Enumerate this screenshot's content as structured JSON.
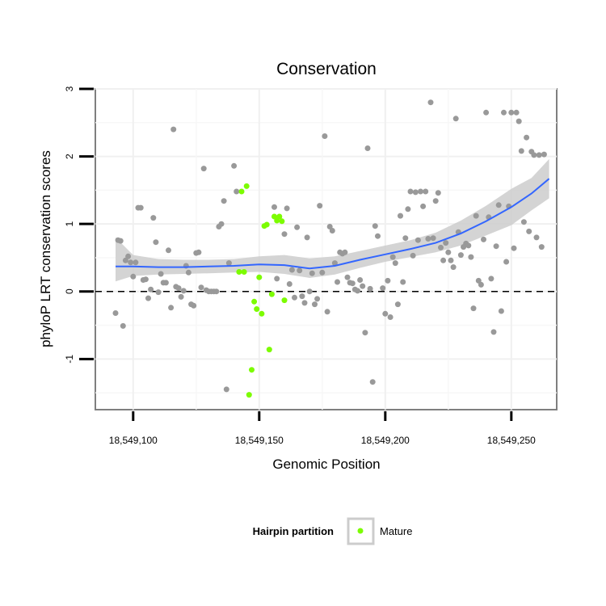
{
  "chart_data": {
    "type": "scatter",
    "title": "Conservation",
    "xlabel": "Genomic Position",
    "ylabel": "phyloP LRT conservation scores",
    "xlim": [
      18549085,
      18549268
    ],
    "ylim": [
      -1.75,
      3.0
    ],
    "x_ticks": [
      18549100,
      18549150,
      18549200,
      18549250
    ],
    "x_tick_labels": [
      "18,549,100",
      "18,549,150",
      "18,549,200",
      "18,549,250"
    ],
    "y_ticks": [
      -1,
      0,
      1,
      2,
      3
    ],
    "y_tick_labels": [
      "-1",
      "0",
      "1",
      "2",
      "3"
    ],
    "reference_line": {
      "y": 0,
      "style": "dashed"
    },
    "grid": true,
    "legend": {
      "title": "Hairpin partition",
      "position": "bottom",
      "entries": [
        {
          "label": "Mature",
          "color": "#7cfc00"
        }
      ]
    },
    "colors": {
      "other_points": "#999999",
      "mature_points": "#7cfc00",
      "smooth_line": "#3366ff",
      "ribbon": "#cccccc"
    },
    "series": [
      {
        "name": "",
        "color": "#999999",
        "points": [
          [
            18549093,
            -0.32
          ],
          [
            18549094,
            0.76
          ],
          [
            18549095,
            0.75
          ],
          [
            18549096,
            -0.51
          ],
          [
            18549097,
            0.46
          ],
          [
            18549098,
            0.52
          ],
          [
            18549099,
            0.43
          ],
          [
            18549100,
            0.22
          ],
          [
            18549101,
            0.43
          ],
          [
            18549102,
            1.24
          ],
          [
            18549103,
            1.24
          ],
          [
            18549104,
            0.17
          ],
          [
            18549105,
            0.18
          ],
          [
            18549106,
            -0.1
          ],
          [
            18549107,
            0.03
          ],
          [
            18549108,
            1.09
          ],
          [
            18549109,
            0.73
          ],
          [
            18549110,
            -0.01
          ],
          [
            18549111,
            0.26
          ],
          [
            18549112,
            0.13
          ],
          [
            18549113,
            0.13
          ],
          [
            18549114,
            0.61
          ],
          [
            18549115,
            -0.24
          ],
          [
            18549116,
            2.4
          ],
          [
            18549117,
            0.07
          ],
          [
            18549118,
            0.05
          ],
          [
            18549119,
            -0.08
          ],
          [
            18549120,
            0.01
          ],
          [
            18549121,
            0.38
          ],
          [
            18549122,
            0.28
          ],
          [
            18549123,
            -0.19
          ],
          [
            18549124,
            -0.21
          ],
          [
            18549125,
            0.57
          ],
          [
            18549126,
            0.58
          ],
          [
            18549127,
            0.06
          ],
          [
            18549128,
            1.82
          ],
          [
            18549129,
            0.02
          ],
          [
            18549130,
            0.0
          ],
          [
            18549131,
            0.0
          ],
          [
            18549132,
            0.0
          ],
          [
            18549133,
            0.0
          ],
          [
            18549134,
            0.96
          ],
          [
            18549135,
            1.0
          ],
          [
            18549136,
            1.34
          ],
          [
            18549137,
            -1.45
          ],
          [
            18549138,
            0.42
          ],
          [
            18549140,
            1.86
          ],
          [
            18549141,
            1.48
          ],
          [
            18549156,
            1.25
          ],
          [
            18549157,
            0.19
          ],
          [
            18549160,
            0.85
          ],
          [
            18549161,
            1.23
          ],
          [
            18549162,
            0.11
          ],
          [
            18549163,
            0.32
          ],
          [
            18549164,
            -0.09
          ],
          [
            18549165,
            0.95
          ],
          [
            18549166,
            0.31
          ],
          [
            18549167,
            -0.07
          ],
          [
            18549168,
            -0.17
          ],
          [
            18549169,
            0.8
          ],
          [
            18549170,
            0.0
          ],
          [
            18549171,
            0.27
          ],
          [
            18549172,
            -0.19
          ],
          [
            18549173,
            -0.11
          ],
          [
            18549174,
            1.27
          ],
          [
            18549175,
            0.28
          ],
          [
            18549176,
            2.3
          ],
          [
            18549177,
            -0.3
          ],
          [
            18549178,
            0.96
          ],
          [
            18549179,
            0.9
          ],
          [
            18549180,
            0.42
          ],
          [
            18549181,
            0.14
          ],
          [
            18549182,
            0.58
          ],
          [
            18549183,
            0.56
          ],
          [
            18549184,
            0.58
          ],
          [
            18549185,
            0.21
          ],
          [
            18549186,
            0.13
          ],
          [
            18549187,
            0.12
          ],
          [
            18549188,
            0.03
          ],
          [
            18549189,
            0.01
          ],
          [
            18549190,
            0.17
          ],
          [
            18549191,
            0.08
          ],
          [
            18549192,
            -0.61
          ],
          [
            18549193,
            2.12
          ],
          [
            18549194,
            0.04
          ],
          [
            18549195,
            -1.34
          ],
          [
            18549196,
            0.97
          ],
          [
            18549197,
            0.82
          ],
          [
            18549199,
            0.05
          ],
          [
            18549200,
            -0.33
          ],
          [
            18549201,
            0.16
          ],
          [
            18549202,
            -0.38
          ],
          [
            18549203,
            0.51
          ],
          [
            18549204,
            0.42
          ],
          [
            18549205,
            -0.19
          ],
          [
            18549206,
            1.12
          ],
          [
            18549207,
            0.14
          ],
          [
            18549208,
            0.79
          ],
          [
            18549209,
            1.22
          ],
          [
            18549210,
            1.48
          ],
          [
            18549211,
            0.53
          ],
          [
            18549212,
            1.47
          ],
          [
            18549213,
            0.76
          ],
          [
            18549214,
            1.48
          ],
          [
            18549215,
            1.26
          ],
          [
            18549216,
            1.48
          ],
          [
            18549217,
            0.78
          ],
          [
            18549218,
            2.8
          ],
          [
            18549219,
            0.79
          ],
          [
            18549220,
            1.34
          ],
          [
            18549221,
            1.46
          ],
          [
            18549222,
            0.65
          ],
          [
            18549223,
            0.46
          ],
          [
            18549224,
            0.72
          ],
          [
            18549225,
            0.58
          ],
          [
            18549226,
            0.46
          ],
          [
            18549227,
            0.36
          ],
          [
            18549228,
            2.56
          ],
          [
            18549229,
            0.88
          ],
          [
            18549230,
            0.54
          ],
          [
            18549231,
            0.66
          ],
          [
            18549232,
            0.71
          ],
          [
            18549233,
            0.68
          ],
          [
            18549234,
            0.51
          ],
          [
            18549235,
            -0.25
          ],
          [
            18549236,
            1.12
          ],
          [
            18549237,
            0.16
          ],
          [
            18549238,
            0.1
          ],
          [
            18549239,
            0.77
          ],
          [
            18549240,
            2.65
          ],
          [
            18549241,
            1.1
          ],
          [
            18549242,
            0.19
          ],
          [
            18549243,
            -0.6
          ],
          [
            18549244,
            0.67
          ],
          [
            18549245,
            1.28
          ],
          [
            18549246,
            -0.29
          ],
          [
            18549247,
            2.65
          ],
          [
            18549248,
            0.44
          ],
          [
            18549249,
            1.26
          ],
          [
            18549250,
            2.65
          ],
          [
            18549251,
            0.64
          ],
          [
            18549252,
            2.65
          ],
          [
            18549253,
            2.52
          ],
          [
            18549254,
            2.08
          ],
          [
            18549255,
            1.03
          ],
          [
            18549256,
            2.28
          ],
          [
            18549257,
            0.89
          ],
          [
            18549258,
            2.07
          ],
          [
            18549259,
            2.02
          ],
          [
            18549260,
            0.8
          ],
          [
            18549261,
            2.02
          ],
          [
            18549262,
            0.66
          ],
          [
            18549263,
            2.03
          ]
        ]
      },
      {
        "name": "Mature",
        "color": "#7cfc00",
        "points": [
          [
            18549142,
            0.29
          ],
          [
            18549143,
            1.48
          ],
          [
            18549144,
            0.29
          ],
          [
            18549145,
            1.56
          ],
          [
            18549146,
            -1.53
          ],
          [
            18549147,
            -1.16
          ],
          [
            18549148,
            -0.15
          ],
          [
            18549149,
            -0.26
          ],
          [
            18549150,
            0.21
          ],
          [
            18549151,
            -0.33
          ],
          [
            18549152,
            0.97
          ],
          [
            18549153,
            0.99
          ],
          [
            18549154,
            -0.86
          ],
          [
            18549155,
            -0.04
          ],
          [
            18549156,
            1.11
          ],
          [
            18549157,
            1.05
          ],
          [
            18549158,
            1.11
          ],
          [
            18549159,
            1.04
          ],
          [
            18549160,
            -0.13
          ]
        ]
      }
    ],
    "smooth": {
      "x": [
        18549093,
        18549100,
        18549110,
        18549120,
        18549130,
        18549140,
        18549150,
        18549160,
        18549170,
        18549180,
        18549190,
        18549200,
        18549210,
        18549220,
        18549230,
        18549240,
        18549250,
        18549258,
        18549265
      ],
      "y": [
        0.37,
        0.37,
        0.36,
        0.36,
        0.37,
        0.38,
        0.4,
        0.39,
        0.34,
        0.38,
        0.47,
        0.55,
        0.63,
        0.72,
        0.86,
        1.04,
        1.25,
        1.45,
        1.67
      ],
      "lower": [
        0.15,
        0.23,
        0.25,
        0.26,
        0.27,
        0.28,
        0.29,
        0.26,
        0.2,
        0.25,
        0.35,
        0.44,
        0.51,
        0.58,
        0.68,
        0.83,
        0.98,
        1.2,
        1.38
      ],
      "upper": [
        0.8,
        0.54,
        0.48,
        0.47,
        0.47,
        0.48,
        0.52,
        0.54,
        0.49,
        0.52,
        0.6,
        0.68,
        0.76,
        0.87,
        1.05,
        1.27,
        1.52,
        1.68,
        1.96
      ]
    }
  }
}
